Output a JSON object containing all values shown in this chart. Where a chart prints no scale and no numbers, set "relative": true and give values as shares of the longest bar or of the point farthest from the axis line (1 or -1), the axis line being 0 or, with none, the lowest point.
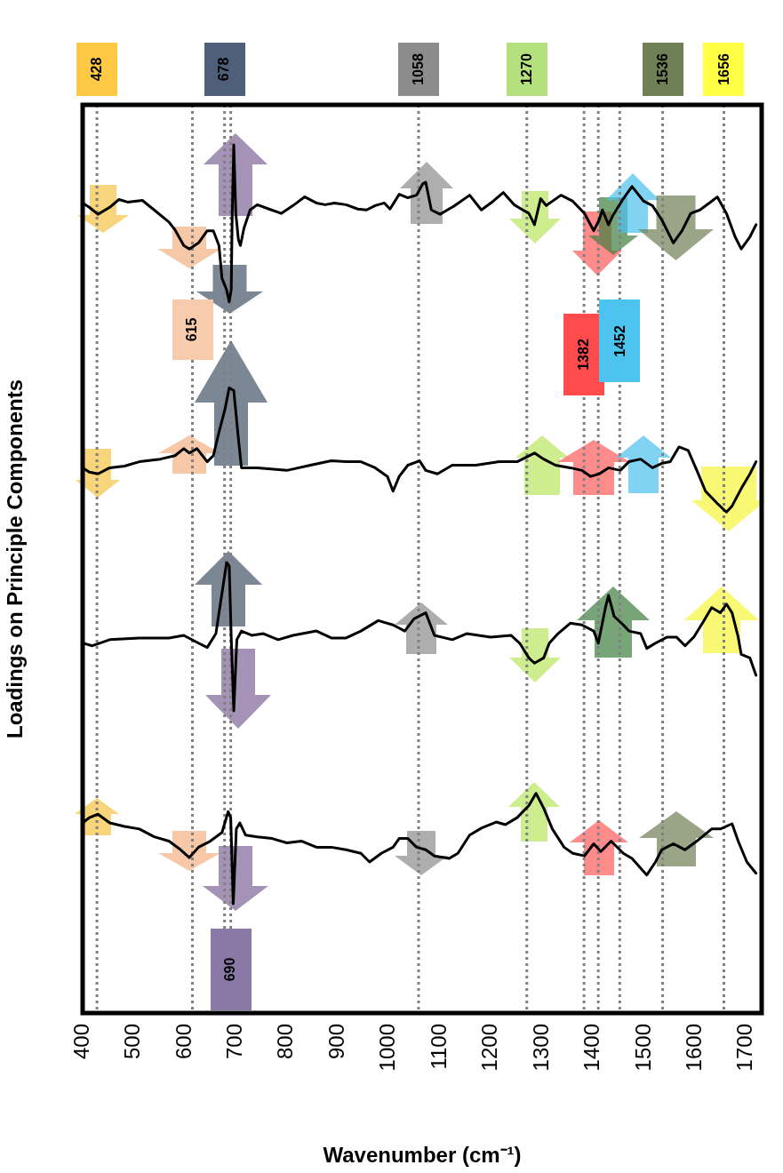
{
  "chart_data": {
    "type": "line",
    "xlabel": "Wavenumber (cm⁻¹)",
    "ylabel": "Loadings on Principle Components",
    "xlim": [
      400,
      1730
    ],
    "xticks": [
      400,
      500,
      600,
      700,
      800,
      900,
      1000,
      1100,
      1200,
      1300,
      1400,
      1500,
      1600,
      1700
    ],
    "relative": true,
    "marker": "none",
    "line_style": "solid",
    "series": [
      {
        "color": "#000000",
        "x": [
          400,
          413,
          430,
          453,
          471,
          488,
          517,
          540,
          569,
          581,
          598,
          609,
          627,
          644,
          656,
          667,
          673,
          682,
          687,
          691,
          693,
          696,
          700,
          705,
          709,
          716,
          728,
          742,
          765,
          789,
          812,
          835,
          858,
          875,
          893,
          916,
          939,
          956,
          973,
          991,
          1002,
          1020,
          1037,
          1054,
          1066,
          1072,
          1083,
          1100,
          1129,
          1158,
          1181,
          1204,
          1224,
          1245,
          1262,
          1274,
          1285,
          1297,
          1308,
          1337,
          1360,
          1383,
          1401,
          1412,
          1418,
          1430,
          1438,
          1459,
          1476,
          1499,
          1516,
          1534,
          1557,
          1574,
          1591,
          1609,
          1632,
          1643,
          1661,
          1678,
          1690,
          1707,
          1719
        ],
        "values": [
          0.933,
          0.928,
          0.92,
          0.928,
          0.937,
          0.934,
          0.936,
          0.925,
          0.911,
          0.902,
          0.884,
          0.88,
          0.887,
          0.901,
          0.901,
          0.884,
          0.846,
          0.833,
          0.819,
          0.833,
          0.921,
          1,
          0.921,
          0.891,
          0.884,
          0.904,
          0.925,
          0.931,
          0.926,
          0.921,
          0.93,
          0.94,
          0.933,
          0.931,
          0.933,
          0.931,
          0.926,
          0.925,
          0.93,
          0.933,
          0.926,
          0.943,
          0.939,
          0.942,
          0.955,
          0.957,
          0.925,
          0.92,
          0.93,
          0.942,
          0.925,
          0.935,
          0.945,
          0.931,
          0.925,
          0.921,
          0.908,
          0.938,
          0.93,
          0.942,
          0.935,
          0.921,
          0.901,
          0.914,
          0.925,
          0.908,
          0.918,
          0.938,
          0.952,
          0.935,
          0.93,
          0.914,
          0.887,
          0.901,
          0.921,
          0.925,
          0.935,
          0.94,
          0.921,
          0.894,
          0.88,
          0.894,
          0.908
        ]
      },
      {
        "color": "#000000",
        "x": [
          400,
          413,
          430,
          453,
          482,
          511,
          552,
          581,
          598,
          609,
          624,
          644,
          656,
          667,
          679,
          687,
          696,
          705,
          711,
          742,
          800,
          846,
          887,
          916,
          945,
          973,
          997,
          1008,
          1020,
          1037,
          1060,
          1072,
          1095,
          1124,
          1170,
          1216,
          1251,
          1285,
          1303,
          1326,
          1355,
          1378,
          1395,
          1412,
          1430,
          1453,
          1470,
          1493,
          1516,
          1534,
          1551,
          1568,
          1586,
          1603,
          1620,
          1643,
          1661,
          1672,
          1690,
          1707,
          1719
        ],
        "values": [
          0.628,
          0.623,
          0.621,
          0.628,
          0.63,
          0.635,
          0.638,
          0.642,
          0.65,
          0.645,
          0.65,
          0.635,
          0.642,
          0.669,
          0.696,
          0.72,
          0.717,
          0.662,
          0.628,
          0.628,
          0.625,
          0.631,
          0.636,
          0.635,
          0.635,
          0.628,
          0.618,
          0.601,
          0.618,
          0.631,
          0.636,
          0.625,
          0.621,
          0.631,
          0.631,
          0.635,
          0.635,
          0.645,
          0.638,
          0.631,
          0.628,
          0.625,
          0.618,
          0.621,
          0.628,
          0.625,
          0.635,
          0.638,
          0.628,
          0.633,
          0.635,
          0.652,
          0.648,
          0.625,
          0.601,
          0.587,
          0.577,
          0.584,
          0.604,
          0.621,
          0.635
        ]
      },
      {
        "color": "#000000",
        "x": [
          400,
          419,
          453,
          511,
          569,
          598,
          627,
          644,
          661,
          673,
          682,
          687,
          691,
          696,
          702,
          711,
          731,
          754,
          783,
          812,
          858,
          887,
          916,
          945,
          979,
          1008,
          1031,
          1049,
          1072,
          1089,
          1124,
          1152,
          1199,
          1239,
          1256,
          1274,
          1285,
          1303,
          1314,
          1331,
          1355,
          1378,
          1401,
          1410,
          1424,
          1430,
          1441,
          1459,
          1470,
          1493,
          1505,
          1522,
          1545,
          1563,
          1580,
          1597,
          1615,
          1632,
          1649,
          1661,
          1672,
          1684,
          1690,
          1707,
          1719
        ],
        "values": [
          0.426,
          0.423,
          0.43,
          0.432,
          0.432,
          0.435,
          0.426,
          0.421,
          0.437,
          0.484,
          0.519,
          0.515,
          0.433,
          0.348,
          0.43,
          0.44,
          0.435,
          0.437,
          0.43,
          0.435,
          0.44,
          0.432,
          0.432,
          0.44,
          0.452,
          0.447,
          0.44,
          0.454,
          0.461,
          0.435,
          0.43,
          0.437,
          0.433,
          0.435,
          0.426,
          0.409,
          0.403,
          0.409,
          0.426,
          0.437,
          0.449,
          0.447,
          0.44,
          0.426,
          0.467,
          0.481,
          0.457,
          0.447,
          0.44,
          0.437,
          0.42,
          0.426,
          0.433,
          0.433,
          0.423,
          0.433,
          0.45,
          0.467,
          0.461,
          0.471,
          0.461,
          0.433,
          0.413,
          0.409,
          0.389
        ]
      },
      {
        "color": "#000000",
        "x": [
          400,
          413,
          430,
          453,
          482,
          511,
          540,
          569,
          592,
          609,
          627,
          650,
          673,
          685,
          690,
          695,
          701,
          708,
          719,
          742,
          771,
          800,
          829,
          858,
          887,
          916,
          945,
          962,
          985,
          1008,
          1020,
          1037,
          1054,
          1072,
          1089,
          1118,
          1135,
          1158,
          1181,
          1210,
          1228,
          1251,
          1274,
          1288,
          1303,
          1320,
          1343,
          1360,
          1383,
          1401,
          1415,
          1435,
          1459,
          1476,
          1505,
          1522,
          1534,
          1557,
          1580,
          1603,
          1632,
          1649,
          1672,
          1684,
          1701,
          1719
        ],
        "values": [
          0.219,
          0.225,
          0.229,
          0.219,
          0.215,
          0.212,
          0.203,
          0.198,
          0.188,
          0.179,
          0.191,
          0.198,
          0.208,
          0.232,
          0.225,
          0.126,
          0.212,
          0.219,
          0.205,
          0.203,
          0.201,
          0.196,
          0.198,
          0.191,
          0.191,
          0.188,
          0.184,
          0.174,
          0.184,
          0.191,
          0.201,
          0.201,
          0.191,
          0.188,
          0.181,
          0.178,
          0.184,
          0.205,
          0.213,
          0.22,
          0.217,
          0.225,
          0.239,
          0.253,
          0.236,
          0.212,
          0.191,
          0.184,
          0.181,
          0.195,
          0.186,
          0.198,
          0.184,
          0.178,
          0.159,
          0.174,
          0.188,
          0.195,
          0.188,
          0.198,
          0.212,
          0.212,
          0.218,
          0.198,
          0.174,
          0.161
        ]
      }
    ],
    "ref_lines": [
      {
        "axis": "x",
        "value": 428,
        "label": "428",
        "color": "#808080",
        "line_style": "dotted"
      },
      {
        "axis": "x",
        "value": 615,
        "label": "615",
        "color": "#808080",
        "line_style": "dotted"
      },
      {
        "axis": "x",
        "value": 678,
        "label": "678",
        "color": "#808080",
        "line_style": "dotted"
      },
      {
        "axis": "x",
        "value": 690,
        "label": "690",
        "color": "#808080",
        "line_style": "dotted"
      },
      {
        "axis": "x",
        "value": 1058,
        "label": "1058",
        "color": "#808080",
        "line_style": "dotted"
      },
      {
        "axis": "x",
        "value": 1270,
        "label": "1270",
        "color": "#808080",
        "line_style": "dotted"
      },
      {
        "axis": "x",
        "value": 1382,
        "label": "1382",
        "color": "#808080",
        "line_style": "dotted"
      },
      {
        "axis": "x",
        "value": 1410,
        "label": null,
        "color": "#808080",
        "line_style": "dotted"
      },
      {
        "axis": "x",
        "value": 1452,
        "label": "1452",
        "color": "#808080",
        "line_style": "dotted"
      },
      {
        "axis": "x",
        "value": 1536,
        "label": "1536",
        "color": "#808080",
        "line_style": "dotted"
      },
      {
        "axis": "x",
        "value": 1656,
        "label": "1656",
        "color": "#808080",
        "line_style": "dotted"
      }
    ]
  }
}
